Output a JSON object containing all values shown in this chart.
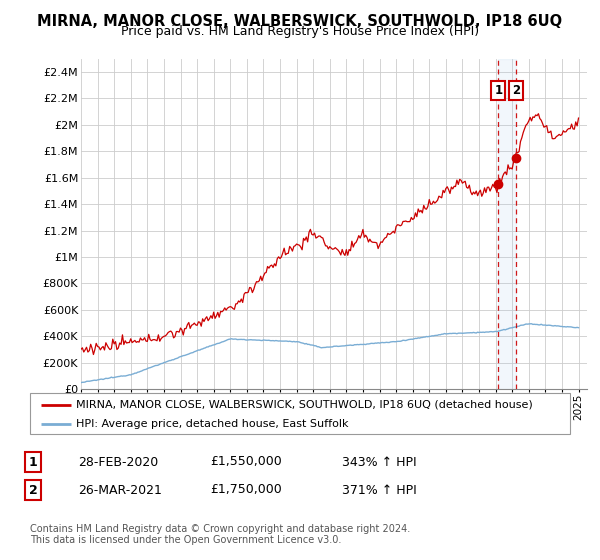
{
  "title": "MIRNA, MANOR CLOSE, WALBERSWICK, SOUTHWOLD, IP18 6UQ",
  "subtitle": "Price paid vs. HM Land Registry's House Price Index (HPI)",
  "ylabel_ticks": [
    "£0",
    "£200K",
    "£400K",
    "£600K",
    "£800K",
    "£1M",
    "£1.2M",
    "£1.4M",
    "£1.6M",
    "£1.8M",
    "£2M",
    "£2.2M",
    "£2.4M"
  ],
  "ytick_values": [
    0,
    200000,
    400000,
    600000,
    800000,
    1000000,
    1200000,
    1400000,
    1600000,
    1800000,
    2000000,
    2200000,
    2400000
  ],
  "ylim": [
    0,
    2500000
  ],
  "xlim_start": 1995.0,
  "xlim_end": 2025.5,
  "hpi_color": "#7aadd4",
  "price_color": "#cc0000",
  "sale1_x": 2020.17,
  "sale1_y": 1550000,
  "sale2_x": 2021.25,
  "sale2_y": 1750000,
  "sale1_label": "1",
  "sale2_label": "2",
  "legend_line1": "MIRNA, MANOR CLOSE, WALBERSWICK, SOUTHWOLD, IP18 6UQ (detached house)",
  "legend_line2": "HPI: Average price, detached house, East Suffolk",
  "table_row1": [
    "1",
    "28-FEB-2020",
    "£1,550,000",
    "343% ↑ HPI"
  ],
  "table_row2": [
    "2",
    "26-MAR-2021",
    "£1,750,000",
    "371% ↑ HPI"
  ],
  "footer": "Contains HM Land Registry data © Crown copyright and database right 2024.\nThis data is licensed under the Open Government Licence v3.0.",
  "background_color": "#ffffff",
  "grid_color": "#cccccc",
  "shade_color": "#ddeeff"
}
